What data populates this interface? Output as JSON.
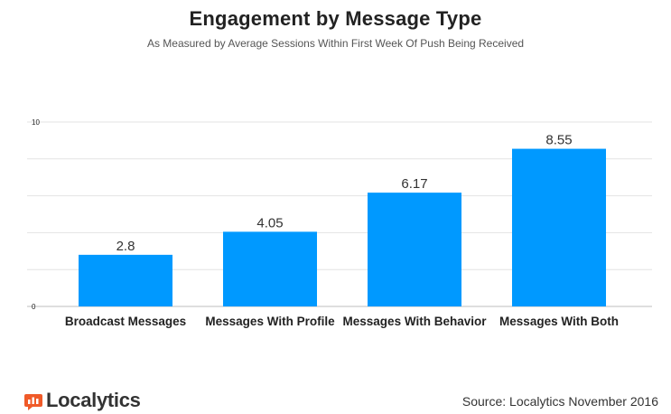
{
  "chart_data": {
    "type": "bar",
    "title": "Engagement by Message Type",
    "subtitle": "As Measured by Average Sessions Within First Week Of Push Being Received",
    "categories": [
      "Broadcast Messages",
      "Messages With Profile",
      "Messages With Behavior",
      "Messages With Both"
    ],
    "values": [
      2.8,
      4.05,
      6.17,
      8.55
    ],
    "value_labels": [
      "2.8",
      "4.05",
      "6.17",
      "8.55"
    ],
    "ylim": [
      0,
      10
    ],
    "ytick_labels": [
      "0",
      "10"
    ],
    "xlabel": "",
    "ylabel": "",
    "grid": true,
    "bar_color": "#0099ff"
  },
  "footer": {
    "logo_text": "Localytics",
    "logo_color": "#f05a28",
    "source": "Source: Localytics November 2016"
  }
}
